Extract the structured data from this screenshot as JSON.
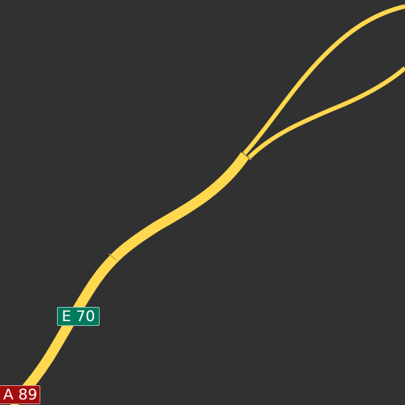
{
  "map": {
    "background_color": "#313131",
    "road_color": "#ffd84f",
    "roads": [
      {
        "ref": "E 70",
        "shield_color": "#007a5e",
        "shield_icon": "european-route-shield-icon"
      },
      {
        "ref": "A 89",
        "shield_color": "#a30d0d",
        "shield_icon": "motorway-route-shield-icon"
      }
    ]
  }
}
